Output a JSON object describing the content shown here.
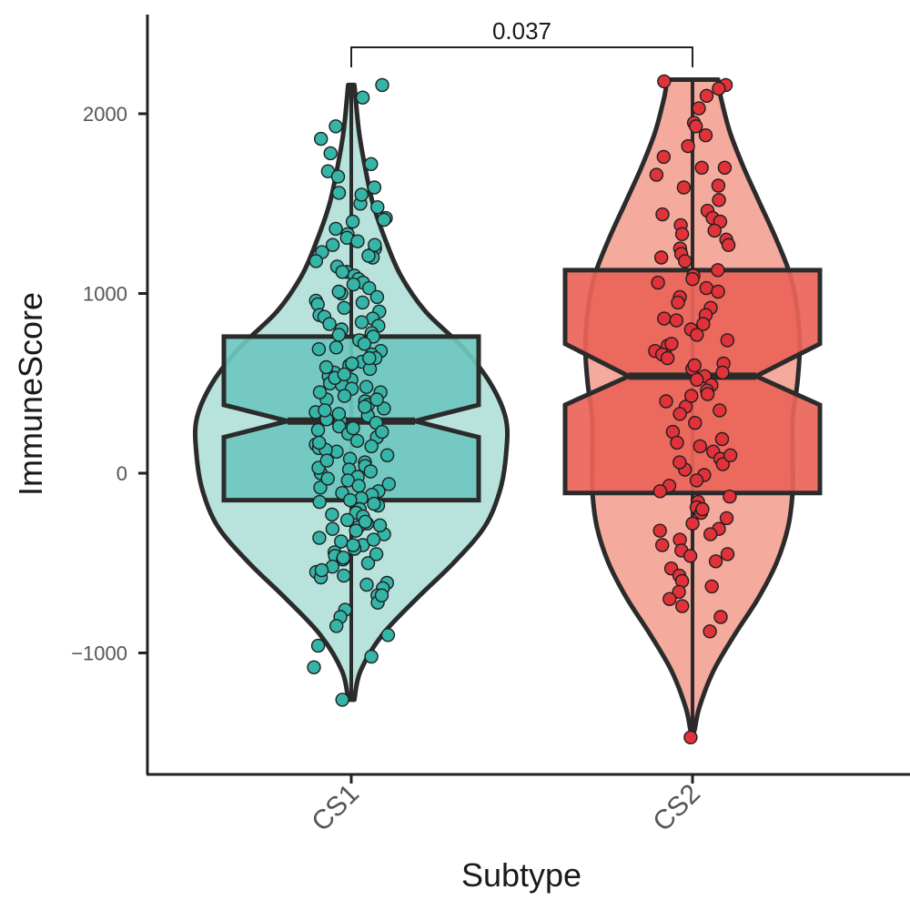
{
  "chart_data": {
    "type": "violin",
    "xlabel": "Subtype",
    "ylabel": "ImmuneScore",
    "categories": [
      "CS1",
      "CS2"
    ],
    "ylim": [
      -1650,
      2550
    ],
    "yticks": [
      -1000,
      0,
      1000,
      2000
    ],
    "ytick_labels": [
      "−1000",
      "0",
      "1000",
      "2000"
    ],
    "comparison": {
      "groups": [
        "CS1",
        "CS2"
      ],
      "label": "0.037"
    },
    "groups": [
      {
        "name": "CS1",
        "violin_fill": "#b8e2dc",
        "box_fill": "#6ec8bf",
        "point_fill": "#35b5a7",
        "min": -1260,
        "max": 2160,
        "q1": -150,
        "median": 290,
        "q3": 760,
        "notch_low": 200,
        "notch_high": 380,
        "density": [
          [
            -1260,
            0.02
          ],
          [
            -1100,
            0.06
          ],
          [
            -900,
            0.2
          ],
          [
            -700,
            0.42
          ],
          [
            -500,
            0.66
          ],
          [
            -300,
            0.86
          ],
          [
            -100,
            0.96
          ],
          [
            100,
            1.0
          ],
          [
            300,
            1.0
          ],
          [
            500,
            0.9
          ],
          [
            700,
            0.72
          ],
          [
            900,
            0.48
          ],
          [
            1100,
            0.32
          ],
          [
            1300,
            0.22
          ],
          [
            1500,
            0.14
          ],
          [
            1700,
            0.09
          ],
          [
            1900,
            0.05
          ],
          [
            2160,
            0.02
          ]
        ],
        "points": [
          2090,
          2160,
          1930,
          1860,
          1780,
          1720,
          1680,
          1650,
          1590,
          1560,
          1500,
          1480,
          1420,
          1400,
          1360,
          1330,
          1310,
          1290,
          1270,
          1250,
          1230,
          1200,
          1180,
          1150,
          1120,
          1100,
          1080,
          1060,
          1030,
          1000,
          980,
          960,
          940,
          920,
          900,
          880,
          860,
          840,
          820,
          800,
          780,
          760,
          740,
          720,
          700,
          680,
          660,
          640,
          620,
          600,
          580,
          560,
          540,
          520,
          500,
          490,
          470,
          450,
          430,
          410,
          400,
          380,
          360,
          340,
          320,
          300,
          290,
          280,
          260,
          240,
          220,
          200,
          180,
          160,
          140,
          120,
          100,
          80,
          60,
          40,
          20,
          0,
          -20,
          -40,
          -60,
          -80,
          -100,
          -120,
          -140,
          -160,
          -180,
          -200,
          -220,
          -240,
          -260,
          -280,
          -300,
          -320,
          -340,
          -360,
          -380,
          -400,
          -420,
          -440,
          -460,
          -480,
          -500,
          -520,
          -550,
          -580,
          -610,
          -640,
          -680,
          -720,
          -760,
          -800,
          -850,
          -900,
          -960,
          -1020,
          -1080,
          -1260,
          1550,
          1410,
          1210,
          1010,
          870,
          610,
          530,
          450,
          350,
          230,
          130,
          30,
          -70,
          -170,
          -270,
          -370,
          -470,
          -570,
          -680,
          1120,
          950,
          770,
          590,
          410,
          250,
          70,
          -110,
          -290,
          -450,
          -620,
          1270,
          1050,
          830,
          640,
          480,
          330,
          170,
          10,
          -150,
          -310,
          -540,
          690,
          370,
          -30,
          -400,
          150,
          550,
          -230
        ],
        "jitter_seed": 11
      },
      {
        "name": "CS2",
        "violin_fill": "#f4aa9c",
        "box_fill": "#ea6459",
        "point_fill": "#e1323a",
        "min": -1470,
        "max": 2190,
        "q1": -110,
        "median": 540,
        "q3": 1130,
        "notch_low": 380,
        "notch_high": 720,
        "density": [
          [
            -1470,
            0.0
          ],
          [
            -1420,
            0.02
          ],
          [
            -1300,
            0.06
          ],
          [
            -1100,
            0.18
          ],
          [
            -900,
            0.36
          ],
          [
            -700,
            0.56
          ],
          [
            -500,
            0.72
          ],
          [
            -300,
            0.82
          ],
          [
            -100,
            0.86
          ],
          [
            100,
            0.86
          ],
          [
            300,
            0.86
          ],
          [
            500,
            0.9
          ],
          [
            700,
            0.92
          ],
          [
            900,
            0.9
          ],
          [
            1100,
            0.84
          ],
          [
            1300,
            0.72
          ],
          [
            1500,
            0.58
          ],
          [
            1700,
            0.44
          ],
          [
            1900,
            0.32
          ],
          [
            2100,
            0.24
          ],
          [
            2190,
            0.22
          ]
        ],
        "points": [
          2180,
          2160,
          2140,
          2100,
          2030,
          1950,
          1930,
          1880,
          1820,
          1760,
          1700,
          1660,
          1600,
          1520,
          1460,
          1440,
          1420,
          1400,
          1380,
          1350,
          1300,
          1270,
          1250,
          1220,
          1180,
          1130,
          1100,
          1060,
          1030,
          1010,
          980,
          950,
          920,
          880,
          860,
          830,
          800,
          770,
          740,
          710,
          680,
          660,
          640,
          610,
          580,
          560,
          540,
          520,
          490,
          460,
          440,
          400,
          370,
          330,
          280,
          230,
          190,
          170,
          150,
          120,
          80,
          50,
          20,
          -10,
          -40,
          -70,
          -100,
          -130,
          -160,
          -190,
          -220,
          -250,
          -280,
          -310,
          -340,
          -370,
          -400,
          -430,
          -460,
          -490,
          -530,
          -570,
          -600,
          -630,
          -660,
          -700,
          -740,
          -800,
          -880,
          -1470,
          1590,
          1330,
          1080,
          850,
          600,
          350,
          100,
          -200,
          -450,
          1700,
          1200,
          720,
          430,
          60,
          -320
        ],
        "jitter_seed": 23
      }
    ]
  }
}
